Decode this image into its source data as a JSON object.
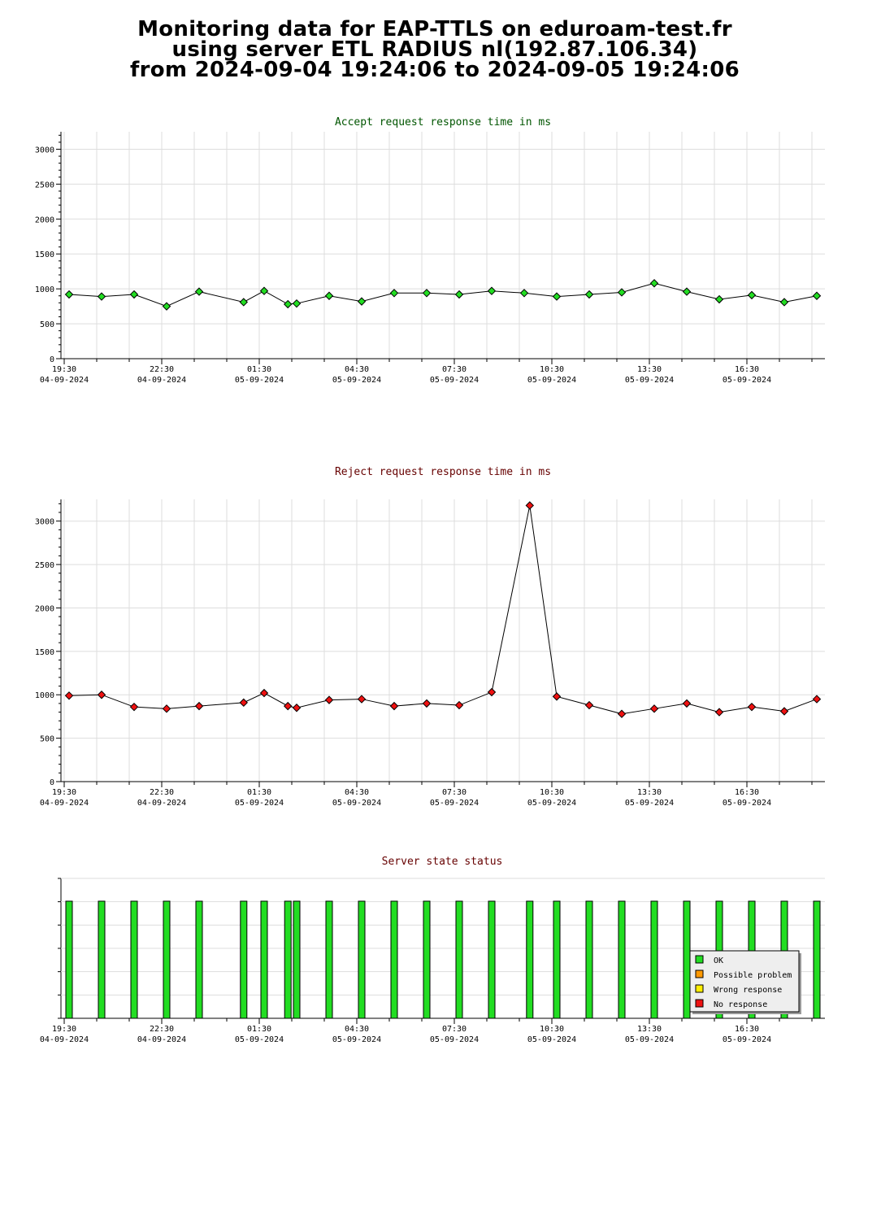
{
  "page": {
    "title_lines": [
      "Monitoring data for EAP-TTLS on eduroam-test.fr",
      "using server ETL RADIUS nl(192.87.106.34)",
      "from 2024-09-04 19:24:06 to 2024-09-05 19:24:06"
    ]
  },
  "colors": {
    "ok": "#22dd22",
    "possible_problem": "#ff9900",
    "wrong_response": "#ffee00",
    "no_response": "#ee1111",
    "accept_title": "#005500",
    "reject_title": "#660000",
    "grid": "#dddddd"
  },
  "x_axis": {
    "tick_labels": [
      {
        "time": "19:30",
        "date": "04-09-2024",
        "t": 0.1
      },
      {
        "time": "22:30",
        "date": "04-09-2024",
        "t": 3.1
      },
      {
        "time": "01:30",
        "date": "05-09-2024",
        "t": 6.1
      },
      {
        "time": "04:30",
        "date": "05-09-2024",
        "t": 9.1
      },
      {
        "time": "07:30",
        "date": "05-09-2024",
        "t": 12.1
      },
      {
        "time": "10:30",
        "date": "05-09-2024",
        "t": 15.1
      },
      {
        "time": "13:30",
        "date": "05-09-2024",
        "t": 18.1
      },
      {
        "time": "16:30",
        "date": "05-09-2024",
        "t": 21.1
      }
    ]
  },
  "chart_data": [
    {
      "type": "line",
      "title": "Accept request response time in ms",
      "ylim": [
        0,
        3250
      ],
      "y_ticks": [
        0,
        500,
        1000,
        1500,
        2000,
        2500,
        3000
      ],
      "grid": true,
      "series": [
        {
          "color": "#22dd22",
          "points": [
            {
              "t": 0.25,
              "y": 920
            },
            {
              "t": 1.25,
              "y": 890
            },
            {
              "t": 2.25,
              "y": 920
            },
            {
              "t": 3.25,
              "y": 750
            },
            {
              "t": 4.25,
              "y": 960
            },
            {
              "t": 5.62,
              "y": 810
            },
            {
              "t": 6.25,
              "y": 970
            },
            {
              "t": 6.98,
              "y": 780
            },
            {
              "t": 7.25,
              "y": 790
            },
            {
              "t": 8.25,
              "y": 900
            },
            {
              "t": 9.25,
              "y": 820
            },
            {
              "t": 10.25,
              "y": 940
            },
            {
              "t": 11.25,
              "y": 940
            },
            {
              "t": 12.25,
              "y": 920
            },
            {
              "t": 13.25,
              "y": 970
            },
            {
              "t": 14.25,
              "y": 940
            },
            {
              "t": 15.25,
              "y": 890
            },
            {
              "t": 16.25,
              "y": 920
            },
            {
              "t": 17.25,
              "y": 950
            },
            {
              "t": 18.25,
              "y": 1080
            },
            {
              "t": 19.25,
              "y": 960
            },
            {
              "t": 20.25,
              "y": 850
            },
            {
              "t": 21.25,
              "y": 910
            },
            {
              "t": 22.25,
              "y": 810
            },
            {
              "t": 23.25,
              "y": 900
            }
          ]
        }
      ]
    },
    {
      "type": "line",
      "title": "Reject request response time in ms",
      "ylim": [
        0,
        3250
      ],
      "y_ticks": [
        0,
        500,
        1000,
        1500,
        2000,
        2500,
        3000
      ],
      "grid": true,
      "series": [
        {
          "color": "#ee1111",
          "points": [
            {
              "t": 0.25,
              "y": 990
            },
            {
              "t": 1.25,
              "y": 1000
            },
            {
              "t": 2.25,
              "y": 860
            },
            {
              "t": 3.25,
              "y": 840
            },
            {
              "t": 4.25,
              "y": 870
            },
            {
              "t": 5.62,
              "y": 910
            },
            {
              "t": 6.25,
              "y": 1020
            },
            {
              "t": 6.98,
              "y": 870
            },
            {
              "t": 7.25,
              "y": 850
            },
            {
              "t": 8.25,
              "y": 940
            },
            {
              "t": 9.25,
              "y": 950
            },
            {
              "t": 10.25,
              "y": 870
            },
            {
              "t": 11.25,
              "y": 900
            },
            {
              "t": 12.25,
              "y": 880
            },
            {
              "t": 13.25,
              "y": 1030
            },
            {
              "t": 14.42,
              "y": 3180
            },
            {
              "t": 15.25,
              "y": 980
            },
            {
              "t": 16.25,
              "y": 880
            },
            {
              "t": 17.25,
              "y": 780
            },
            {
              "t": 18.25,
              "y": 840
            },
            {
              "t": 19.25,
              "y": 900
            },
            {
              "t": 20.25,
              "y": 800
            },
            {
              "t": 21.25,
              "y": 860
            },
            {
              "t": 22.25,
              "y": 810
            },
            {
              "t": 23.25,
              "y": 950
            }
          ]
        }
      ]
    },
    {
      "type": "bar",
      "title": "Server state status",
      "grid": false,
      "legend": {
        "position": "bottom-right",
        "items": [
          {
            "label": "OK",
            "color": "#22dd22"
          },
          {
            "label": "Possible problem",
            "color": "#ff9900"
          },
          {
            "label": "Wrong response",
            "color": "#ffee00"
          },
          {
            "label": "No response",
            "color": "#ee1111"
          }
        ]
      },
      "bars": [
        {
          "t": 0.25,
          "state": "OK"
        },
        {
          "t": 1.25,
          "state": "OK"
        },
        {
          "t": 2.25,
          "state": "OK"
        },
        {
          "t": 3.25,
          "state": "OK"
        },
        {
          "t": 4.25,
          "state": "OK"
        },
        {
          "t": 5.62,
          "state": "OK"
        },
        {
          "t": 6.25,
          "state": "OK"
        },
        {
          "t": 6.98,
          "state": "OK"
        },
        {
          "t": 7.25,
          "state": "OK"
        },
        {
          "t": 8.25,
          "state": "OK"
        },
        {
          "t": 9.25,
          "state": "OK"
        },
        {
          "t": 10.25,
          "state": "OK"
        },
        {
          "t": 11.25,
          "state": "OK"
        },
        {
          "t": 12.25,
          "state": "OK"
        },
        {
          "t": 13.25,
          "state": "OK"
        },
        {
          "t": 14.42,
          "state": "OK"
        },
        {
          "t": 15.25,
          "state": "OK"
        },
        {
          "t": 16.25,
          "state": "OK"
        },
        {
          "t": 17.25,
          "state": "OK"
        },
        {
          "t": 18.25,
          "state": "OK"
        },
        {
          "t": 19.25,
          "state": "OK"
        },
        {
          "t": 20.25,
          "state": "OK"
        },
        {
          "t": 21.25,
          "state": "OK"
        },
        {
          "t": 22.25,
          "state": "OK"
        },
        {
          "t": 23.25,
          "state": "OK"
        }
      ]
    }
  ]
}
